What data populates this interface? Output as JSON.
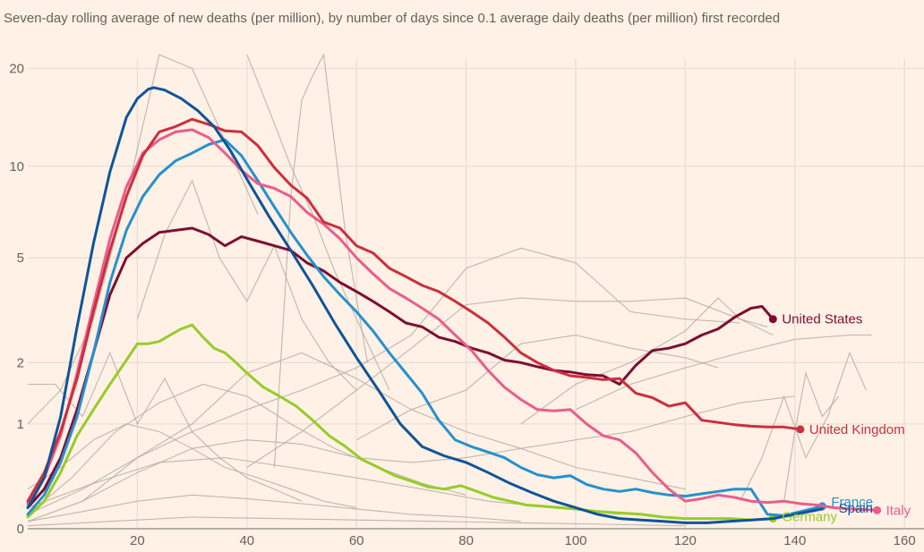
{
  "subtitle": "Seven-day rolling average of new deaths (per million), by number of days since 0.1 average daily deaths (per million) first recorded",
  "colors": {
    "background": "#fff1e5",
    "grid": "#e9ded5",
    "axis": "#b7ada5",
    "other_countries": "#b3aca6",
    "text": "#66605c"
  },
  "chart_data": {
    "type": "line",
    "title": "",
    "subtitle": "Seven-day rolling average of new deaths (per million), by number of days since 0.1 average daily deaths (per million) first recorded",
    "xlabel": "",
    "ylabel": "",
    "x_scale": "linear",
    "y_scale": "log1p",
    "xlim": [
      0,
      162
    ],
    "ylim": [
      0,
      22
    ],
    "x_ticks": [
      20,
      40,
      60,
      80,
      100,
      120,
      140,
      160
    ],
    "y_ticks": [
      0,
      1,
      2,
      5,
      10,
      20
    ],
    "y_tick_labels": [
      "0",
      "1",
      "2",
      "5",
      "10",
      "20"
    ],
    "x_tick_labels": [
      "20",
      "40",
      "60",
      "80",
      "100",
      "120",
      "140",
      "160"
    ],
    "grid": true,
    "legend": "direct-labels-at-line-ends",
    "highlighted_series": [
      {
        "name": "Spain",
        "color": "#0f5499",
        "label": "Spain",
        "x": [
          0,
          3,
          6,
          9,
          12,
          15,
          18,
          20,
          22,
          23,
          25,
          28,
          31,
          34,
          37,
          40,
          44,
          48,
          52,
          56,
          60,
          64,
          68,
          72,
          76,
          80,
          84,
          88,
          92,
          96,
          100,
          104,
          108,
          112,
          116,
          120,
          124,
          128,
          132,
          136,
          140,
          145
        ],
        "values": [
          0.15,
          0.4,
          1.1,
          2.8,
          5.6,
          9.6,
          14.2,
          16.2,
          17.3,
          17.5,
          17.2,
          16.2,
          14.9,
          13.3,
          11.2,
          9.1,
          6.9,
          5.3,
          4.0,
          2.9,
          2.1,
          1.5,
          1.0,
          0.72,
          0.62,
          0.55,
          0.45,
          0.35,
          0.27,
          0.2,
          0.15,
          0.1,
          0.07,
          0.06,
          0.05,
          0.04,
          0.04,
          0.05,
          0.06,
          0.07,
          0.1,
          0.14
        ]
      },
      {
        "name": "United Kingdom",
        "color": "#cc2f3f",
        "label": "United Kingdom",
        "x": [
          0,
          3,
          6,
          9,
          12,
          15,
          18,
          21,
          24,
          27,
          30,
          33,
          36,
          39,
          42,
          45,
          48,
          51,
          54,
          57,
          60,
          63,
          66,
          69,
          72,
          75,
          78,
          81,
          84,
          87,
          90,
          93,
          96,
          99,
          102,
          105,
          108,
          111,
          114,
          117,
          120,
          123,
          126,
          129,
          132,
          135,
          138,
          141
        ],
        "values": [
          0.2,
          0.45,
          0.9,
          1.7,
          3.2,
          5.3,
          8.0,
          10.8,
          12.8,
          13.3,
          14.0,
          13.5,
          12.9,
          12.8,
          11.6,
          9.9,
          8.7,
          7.9,
          6.6,
          6.3,
          5.5,
          5.2,
          4.6,
          4.3,
          4.0,
          3.8,
          3.5,
          3.2,
          2.9,
          2.55,
          2.2,
          2.0,
          1.85,
          1.75,
          1.72,
          1.68,
          1.7,
          1.45,
          1.38,
          1.25,
          1.3,
          1.05,
          1.02,
          0.99,
          0.97,
          0.96,
          0.96,
          0.93
        ]
      },
      {
        "name": "Italy",
        "color": "#e95d8c",
        "label": "Italy",
        "x": [
          0,
          3,
          6,
          9,
          12,
          15,
          18,
          21,
          24,
          27,
          30,
          33,
          36,
          39,
          42,
          45,
          48,
          51,
          54,
          57,
          60,
          63,
          66,
          69,
          72,
          75,
          78,
          81,
          84,
          87,
          90,
          93,
          96,
          99,
          102,
          105,
          108,
          111,
          114,
          117,
          120,
          123,
          126,
          129,
          132,
          135,
          138,
          141,
          144,
          147,
          150,
          155
        ],
        "values": [
          0.18,
          0.4,
          0.85,
          1.8,
          3.4,
          5.8,
          8.6,
          11.0,
          12.1,
          12.8,
          13.0,
          12.3,
          11.0,
          9.7,
          8.8,
          8.5,
          8.0,
          7.1,
          6.5,
          5.8,
          5.0,
          4.4,
          3.9,
          3.6,
          3.3,
          3.0,
          2.6,
          2.25,
          1.85,
          1.55,
          1.35,
          1.2,
          1.18,
          1.2,
          1.0,
          0.85,
          0.8,
          0.65,
          0.45,
          0.3,
          0.2,
          0.22,
          0.25,
          0.23,
          0.2,
          0.19,
          0.2,
          0.18,
          0.17,
          0.15,
          0.14,
          0.13
        ]
      },
      {
        "name": "France",
        "color": "#2591ce",
        "label": "France",
        "x": [
          0,
          3,
          6,
          9,
          12,
          15,
          18,
          21,
          24,
          27,
          30,
          33,
          36,
          39,
          42,
          45,
          48,
          51,
          54,
          57,
          60,
          63,
          66,
          69,
          72,
          75,
          78,
          81,
          84,
          87,
          90,
          93,
          96,
          99,
          102,
          105,
          108,
          111,
          114,
          117,
          120,
          123,
          126,
          129,
          132,
          135,
          138,
          141,
          145
        ],
        "values": [
          0.1,
          0.25,
          0.55,
          1.1,
          2.2,
          4.1,
          6.2,
          8.0,
          9.4,
          10.4,
          11.0,
          11.7,
          12.1,
          10.8,
          9.0,
          7.4,
          6.1,
          5.1,
          4.3,
          3.7,
          3.2,
          2.7,
          2.2,
          1.8,
          1.45,
          1.05,
          0.8,
          0.72,
          0.66,
          0.6,
          0.5,
          0.43,
          0.4,
          0.42,
          0.34,
          0.3,
          0.28,
          0.3,
          0.27,
          0.25,
          0.24,
          0.26,
          0.28,
          0.3,
          0.3,
          0.1,
          0.09,
          0.12,
          0.16
        ]
      },
      {
        "name": "United States",
        "color": "#7d0e33",
        "label": "United States",
        "x": [
          0,
          3,
          6,
          9,
          12,
          15,
          18,
          21,
          24,
          27,
          30,
          33,
          36,
          39,
          42,
          45,
          48,
          51,
          54,
          57,
          60,
          63,
          66,
          69,
          72,
          75,
          78,
          81,
          84,
          87,
          90,
          93,
          96,
          99,
          102,
          105,
          108,
          111,
          114,
          117,
          120,
          123,
          126,
          129,
          132,
          134,
          136
        ],
        "values": [
          0.15,
          0.3,
          0.6,
          1.2,
          2.2,
          3.7,
          5.0,
          5.6,
          6.1,
          6.2,
          6.3,
          6.0,
          5.5,
          5.9,
          5.7,
          5.5,
          5.3,
          4.8,
          4.5,
          4.1,
          3.8,
          3.5,
          3.2,
          2.9,
          2.8,
          2.55,
          2.45,
          2.3,
          2.2,
          2.05,
          2.0,
          1.92,
          1.85,
          1.82,
          1.77,
          1.75,
          1.6,
          1.95,
          2.25,
          2.3,
          2.4,
          2.6,
          2.75,
          3.05,
          3.3,
          3.35,
          3.0
        ]
      },
      {
        "name": "Germany",
        "color": "#96cc28",
        "label": "Germany",
        "x": [
          0,
          3,
          6,
          9,
          12,
          15,
          18,
          20,
          22,
          24,
          26,
          28,
          30,
          32,
          34,
          36,
          38,
          40,
          43,
          46,
          49,
          52,
          55,
          58,
          61,
          64,
          67,
          70,
          73,
          76,
          79,
          82,
          85,
          88,
          91,
          94,
          97,
          100,
          104,
          108,
          112,
          116,
          120,
          124,
          128,
          132,
          136
        ],
        "values": [
          0.08,
          0.2,
          0.45,
          0.85,
          1.2,
          1.6,
          2.05,
          2.4,
          2.4,
          2.45,
          2.6,
          2.75,
          2.85,
          2.55,
          2.3,
          2.2,
          2.0,
          1.8,
          1.55,
          1.4,
          1.25,
          1.05,
          0.85,
          0.72,
          0.58,
          0.5,
          0.42,
          0.37,
          0.32,
          0.3,
          0.33,
          0.28,
          0.23,
          0.2,
          0.17,
          0.16,
          0.15,
          0.14,
          0.12,
          0.11,
          0.1,
          0.08,
          0.07,
          0.07,
          0.07,
          0.06,
          0.07
        ]
      }
    ],
    "background_series_note": "Many other countries shown as thin grey lines without labels",
    "background_series": [
      {
        "x": [
          0,
          10,
          20,
          30,
          40,
          50,
          60,
          70,
          80,
          90
        ],
        "values": [
          0.05,
          0.12,
          0.2,
          0.25,
          0.22,
          0.18,
          0.14,
          0.1,
          0.08,
          0.05
        ]
      },
      {
        "x": [
          0,
          8,
          16,
          24,
          32,
          40,
          48,
          56,
          64,
          72,
          80
        ],
        "values": [
          0.1,
          0.4,
          0.9,
          1.3,
          1.6,
          1.4,
          1.0,
          0.7,
          0.5,
          0.35,
          0.25
        ]
      },
      {
        "x": [
          0,
          10,
          20,
          30,
          40,
          50,
          60,
          70,
          80,
          90,
          100,
          110,
          120,
          130
        ],
        "values": [
          0.1,
          0.3,
          0.6,
          0.9,
          1.2,
          1.5,
          1.9,
          2.6,
          4.6,
          5.4,
          4.8,
          3.2,
          3.0,
          2.9
        ]
      },
      {
        "x": [
          40,
          50,
          60,
          70,
          80,
          90,
          100,
          110,
          120,
          130,
          135
        ],
        "values": [
          0.5,
          0.9,
          1.5,
          2.3,
          3.4,
          3.6,
          3.5,
          3.5,
          3.6,
          3.0,
          2.8
        ]
      },
      {
        "x": [
          60,
          70,
          80,
          90,
          100,
          110,
          120,
          126
        ],
        "values": [
          0.8,
          1.2,
          1.5,
          2.4,
          2.6,
          2.3,
          2.1,
          1.9
        ]
      },
      {
        "x": [
          90,
          100,
          110,
          120,
          126,
          130,
          136
        ],
        "values": [
          1.0,
          1.6,
          2.0,
          2.7,
          3.6,
          3.0,
          2.6
        ]
      },
      {
        "x": [
          100,
          110,
          120,
          130,
          140,
          150,
          154
        ],
        "values": [
          1.2,
          1.6,
          1.9,
          2.2,
          2.5,
          2.6,
          2.6
        ]
      },
      {
        "x": [
          0,
          6,
          12,
          18,
          24,
          30,
          36,
          42
        ],
        "values": [
          1.0,
          1.5,
          3.0,
          8.0,
          22.0,
          20.0,
          12.0,
          7.0
        ]
      },
      {
        "x": [
          20,
          25,
          30,
          35,
          40,
          45,
          50,
          55,
          60
        ],
        "values": [
          3.0,
          6.0,
          9.0,
          5.0,
          3.5,
          5.5,
          3.0,
          2.0,
          1.5
        ]
      },
      {
        "x": [
          40,
          44,
          48,
          52,
          56,
          60,
          66
        ],
        "values": [
          22.0,
          15.0,
          10.0,
          7.0,
          4.5,
          3.0,
          1.5
        ]
      },
      {
        "x": [
          45,
          48,
          50,
          52,
          54,
          58,
          62
        ],
        "values": [
          0.5,
          8.0,
          16.0,
          19.0,
          22.0,
          6.0,
          2.0
        ]
      },
      {
        "x": [
          0,
          15,
          30,
          45,
          60,
          75,
          90,
          105,
          120
        ],
        "values": [
          0.02,
          0.05,
          0.08,
          0.07,
          0.06,
          0.05,
          0.04,
          0.03,
          0.02
        ]
      },
      {
        "x": [
          0,
          12,
          24,
          36,
          48,
          60,
          72,
          84,
          96,
          108
        ],
        "values": [
          0.15,
          0.35,
          0.55,
          0.6,
          0.5,
          0.4,
          0.3,
          0.2,
          0.15,
          0.1
        ]
      },
      {
        "x": [
          0,
          5,
          10,
          15,
          20,
          25,
          30,
          35,
          40,
          45,
          50
        ],
        "values": [
          1.6,
          1.6,
          1.1,
          2.2,
          1.0,
          1.7,
          0.9,
          0.6,
          0.4,
          0.3,
          0.2
        ]
      },
      {
        "x": [
          0,
          10,
          20,
          30,
          40,
          50,
          60,
          70,
          80,
          90,
          100,
          110,
          120,
          130,
          140
        ],
        "values": [
          0.05,
          0.2,
          0.45,
          0.7,
          0.8,
          0.75,
          0.6,
          0.55,
          0.6,
          0.7,
          0.8,
          0.9,
          1.1,
          1.3,
          1.4
        ]
      },
      {
        "x": [
          10,
          20,
          30,
          40,
          50,
          60,
          70,
          80,
          90,
          100,
          110,
          120
        ],
        "values": [
          0.2,
          0.6,
          1.0,
          1.8,
          2.2,
          1.7,
          1.2,
          0.9,
          0.7,
          0.5,
          0.4,
          0.3
        ]
      },
      {
        "x": [
          0,
          6,
          12,
          18,
          24,
          30,
          36,
          42,
          48,
          54,
          60
        ],
        "values": [
          0.3,
          0.5,
          0.8,
          1.0,
          0.9,
          0.7,
          0.5,
          0.4,
          0.3,
          0.2,
          0.15
        ]
      },
      {
        "x": [
          130,
          134,
          138,
          142,
          146,
          150,
          153
        ],
        "values": [
          0.2,
          0.6,
          1.4,
          0.6,
          1.1,
          2.2,
          1.5
        ]
      },
      {
        "x": [
          138,
          140,
          142,
          145,
          148
        ],
        "values": [
          0.2,
          0.9,
          1.8,
          1.1,
          1.4
        ]
      }
    ]
  }
}
